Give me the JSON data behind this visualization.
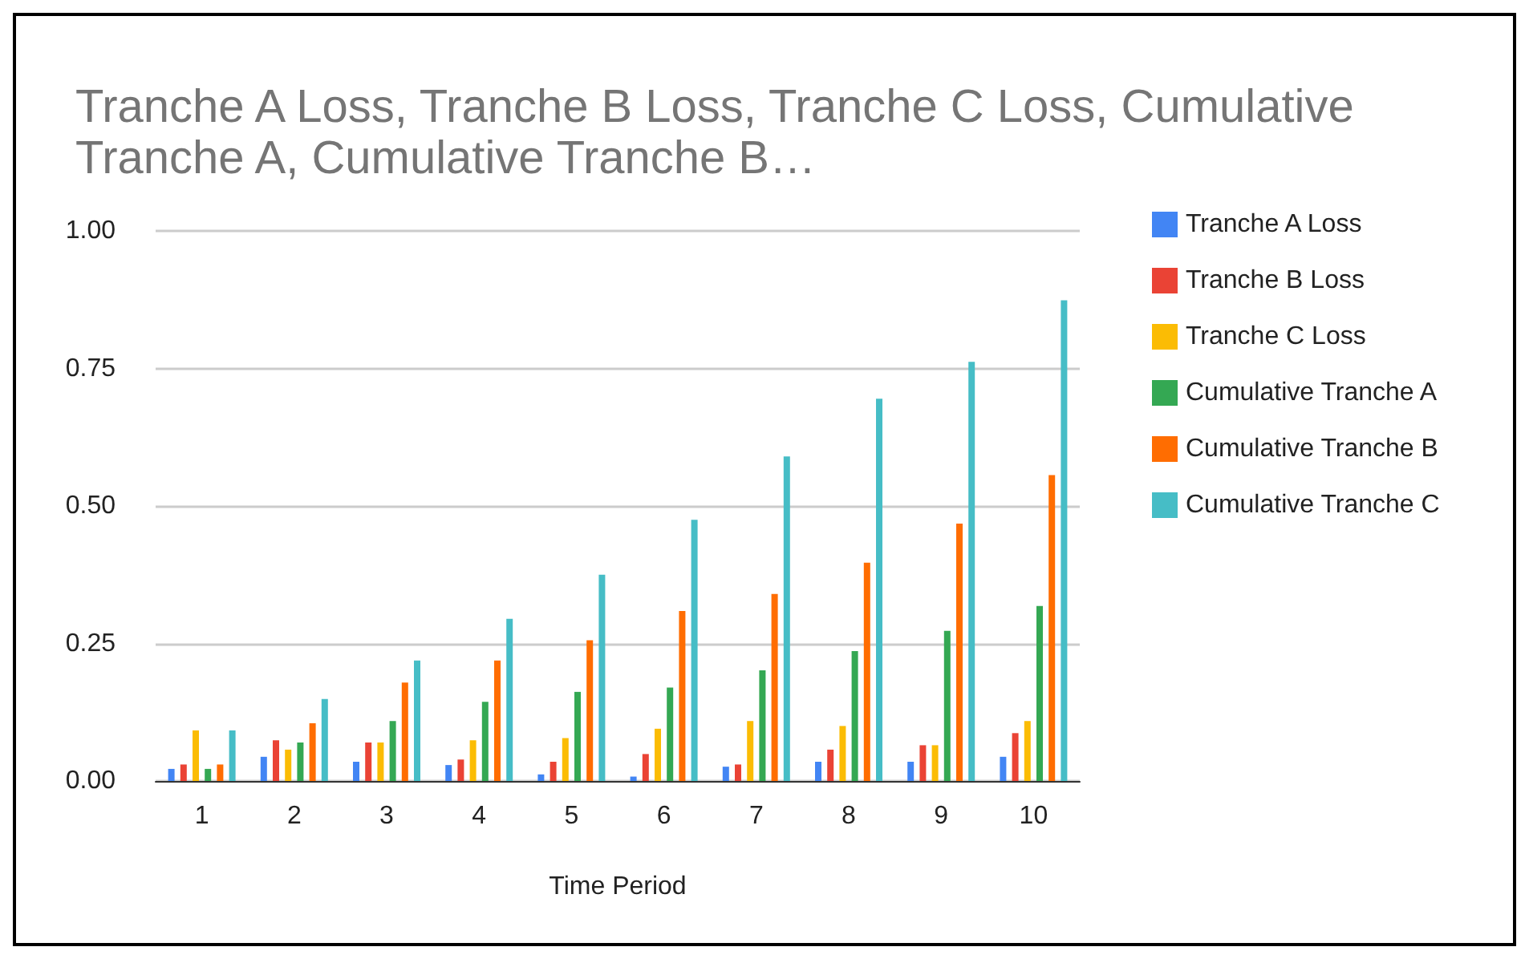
{
  "chart_data": {
    "type": "bar",
    "title": "Tranche A Loss, Tranche B Loss, Tranche C Loss, Cumulative Tranche A, Cumulative Tranche B…",
    "xlabel": "Time Period",
    "categories": [
      "1",
      "2",
      "3",
      "4",
      "5",
      "6",
      "7",
      "8",
      "9",
      "10"
    ],
    "series": [
      {
        "name": "Tranche A Loss",
        "color": "#4285f4",
        "values": [
          0.022,
          0.044,
          0.035,
          0.029,
          0.012,
          0.008,
          0.026,
          0.035,
          0.035,
          0.044
        ]
      },
      {
        "name": "Tranche B Loss",
        "color": "#ea4335",
        "values": [
          0.03,
          0.074,
          0.07,
          0.039,
          0.035,
          0.049,
          0.03,
          0.057,
          0.065,
          0.087
        ]
      },
      {
        "name": "Tranche C Loss",
        "color": "#fbbc04",
        "values": [
          0.092,
          0.057,
          0.07,
          0.074,
          0.078,
          0.095,
          0.109,
          0.1,
          0.065,
          0.109
        ]
      },
      {
        "name": "Cumulative Tranche A",
        "color": "#34a853",
        "values": [
          0.022,
          0.07,
          0.109,
          0.144,
          0.162,
          0.17,
          0.201,
          0.236,
          0.273,
          0.318
        ]
      },
      {
        "name": "Cumulative Tranche B",
        "color": "#ff6d01",
        "values": [
          0.03,
          0.105,
          0.179,
          0.219,
          0.256,
          0.309,
          0.34,
          0.397,
          0.468,
          0.556
        ]
      },
      {
        "name": "Cumulative Tranche C",
        "color": "#46bdc6",
        "values": [
          0.092,
          0.149,
          0.219,
          0.295,
          0.375,
          0.475,
          0.59,
          0.695,
          0.762,
          0.874
        ]
      }
    ],
    "ylim": [
      0,
      1
    ],
    "yticks": [
      {
        "value": 0,
        "label": "0.00"
      },
      {
        "value": 0.25,
        "label": "0.25"
      },
      {
        "value": 0.5,
        "label": "0.50"
      },
      {
        "value": 0.75,
        "label": "0.75"
      },
      {
        "value": 1,
        "label": "1.00"
      }
    ],
    "grid": "y",
    "legend": "top right"
  }
}
